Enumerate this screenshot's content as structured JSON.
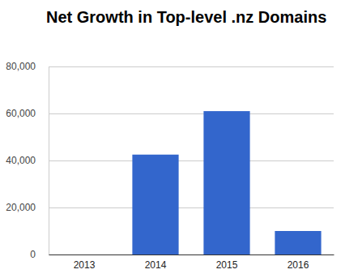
{
  "chart_data": {
    "type": "bar",
    "title": "Net Growth in Top-level .nz Domains",
    "categories": [
      "2013",
      "2014",
      "2015",
      "2016"
    ],
    "values": [
      0,
      42500,
      61000,
      10000
    ],
    "color": "#3366cc",
    "ylim": [
      0,
      80000
    ],
    "yticks": [
      0,
      {
        "value": 20000,
        "label": "20,000"
      },
      {
        "value": 40000,
        "label": "40,000"
      },
      {
        "value": 60000,
        "label": "60,000"
      },
      {
        "value": 80000,
        "label": "80,000"
      }
    ],
    "grid": true
  }
}
